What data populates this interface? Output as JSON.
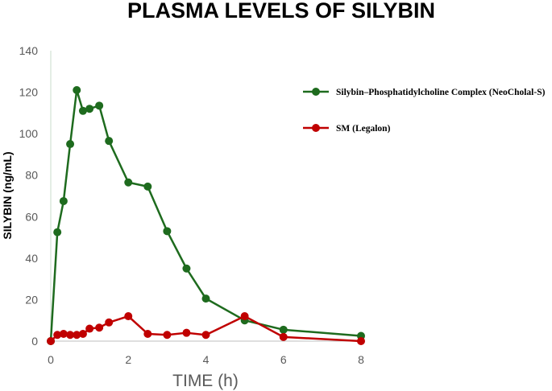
{
  "chart_data": {
    "type": "line",
    "title": "PLASMA LEVELS OF SILYBIN",
    "xlabel": "TIME (h)",
    "ylabel": "SILYBIN (ng/mL)",
    "xlim": [
      0,
      8
    ],
    "ylim": [
      0,
      140
    ],
    "xticks": [
      0,
      2,
      4,
      6,
      8
    ],
    "yticks": [
      0,
      20,
      40,
      60,
      80,
      100,
      120,
      140
    ],
    "grid": false,
    "legend_position": "top-right",
    "series": [
      {
        "name": "Silybin–Phosphatidylcholine Complex (NeoCholal-S)",
        "color": "#1e6b1e",
        "x": [
          0,
          0.17,
          0.33,
          0.5,
          0.67,
          0.83,
          1.0,
          1.25,
          1.5,
          2.0,
          2.5,
          3.0,
          3.5,
          4.0,
          5.0,
          6.0,
          8.0
        ],
        "y": [
          0,
          52.5,
          67.5,
          95,
          121,
          111,
          112,
          113.5,
          96.5,
          76.5,
          74.5,
          53,
          35,
          20.5,
          10,
          5.5,
          2.5
        ]
      },
      {
        "name": "SM (Legalon)",
        "color": "#c00000",
        "x": [
          0,
          0.17,
          0.33,
          0.5,
          0.67,
          0.83,
          1.0,
          1.25,
          1.5,
          2.0,
          2.5,
          3.0,
          3.5,
          4.0,
          5.0,
          6.0,
          8.0
        ],
        "y": [
          0,
          3,
          3.5,
          3,
          3,
          3.5,
          6,
          6.5,
          9,
          12,
          3.5,
          3,
          4,
          3,
          12,
          2,
          0
        ]
      }
    ]
  }
}
